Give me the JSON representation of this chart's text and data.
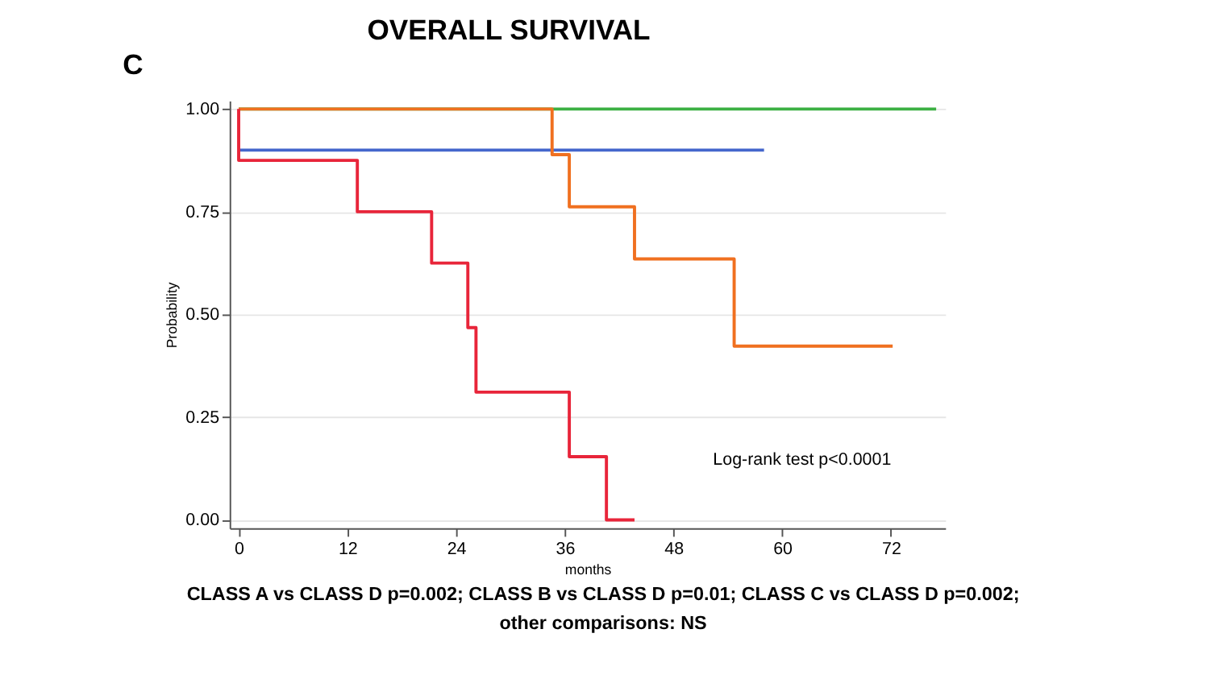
{
  "chart_data": {
    "type": "step",
    "title": "OVERALL SURVIVAL",
    "xlabel": "months",
    "ylabel": "Probability",
    "xlim": [
      -1,
      78
    ],
    "xticks": [
      0,
      12,
      24,
      36,
      48,
      60,
      72
    ],
    "ylim": [
      -0.02,
      1.02
    ],
    "yticks": [
      {
        "value": 0,
        "label": "0.00"
      },
      0.25,
      {
        "value": 0.5,
        "label": "0.50"
      },
      0.75,
      {
        "value": 1,
        "label": "1.00"
      }
    ],
    "grid": "y",
    "marker": "none",
    "line_style": "solid",
    "series": [
      {
        "color": "#3cb043",
        "x": [
          0,
          77
        ],
        "values": [
          1.0,
          1.0
        ]
      },
      {
        "color": "#4466cc",
        "x": [
          0,
          58
        ],
        "values": [
          0.9,
          0.9
        ]
      },
      {
        "color": "#f07020",
        "x": [
          0,
          34.6,
          36.5,
          43.7,
          54.7,
          72.2
        ],
        "values": [
          1.0,
          0.889,
          0.762,
          0.635,
          0.423,
          0.423
        ]
      },
      {
        "color": "#e8253a",
        "x": [
          0,
          0,
          13.1,
          21.3,
          25.3,
          26.2,
          36.5,
          40.6,
          43.7
        ],
        "values": [
          1.0,
          0.875,
          0.75,
          0.625,
          0.468,
          0.311,
          0.154,
          0.0,
          0.0
        ]
      }
    ],
    "annotations": [
      "C",
      "Log-rank test p<0.0001",
      "CLASS A vs CLASS D p=0.002; CLASS B vs CLASS D p=0.01; CLASS C vs CLASS D p=0.002;\nother comparisons: NS"
    ]
  }
}
